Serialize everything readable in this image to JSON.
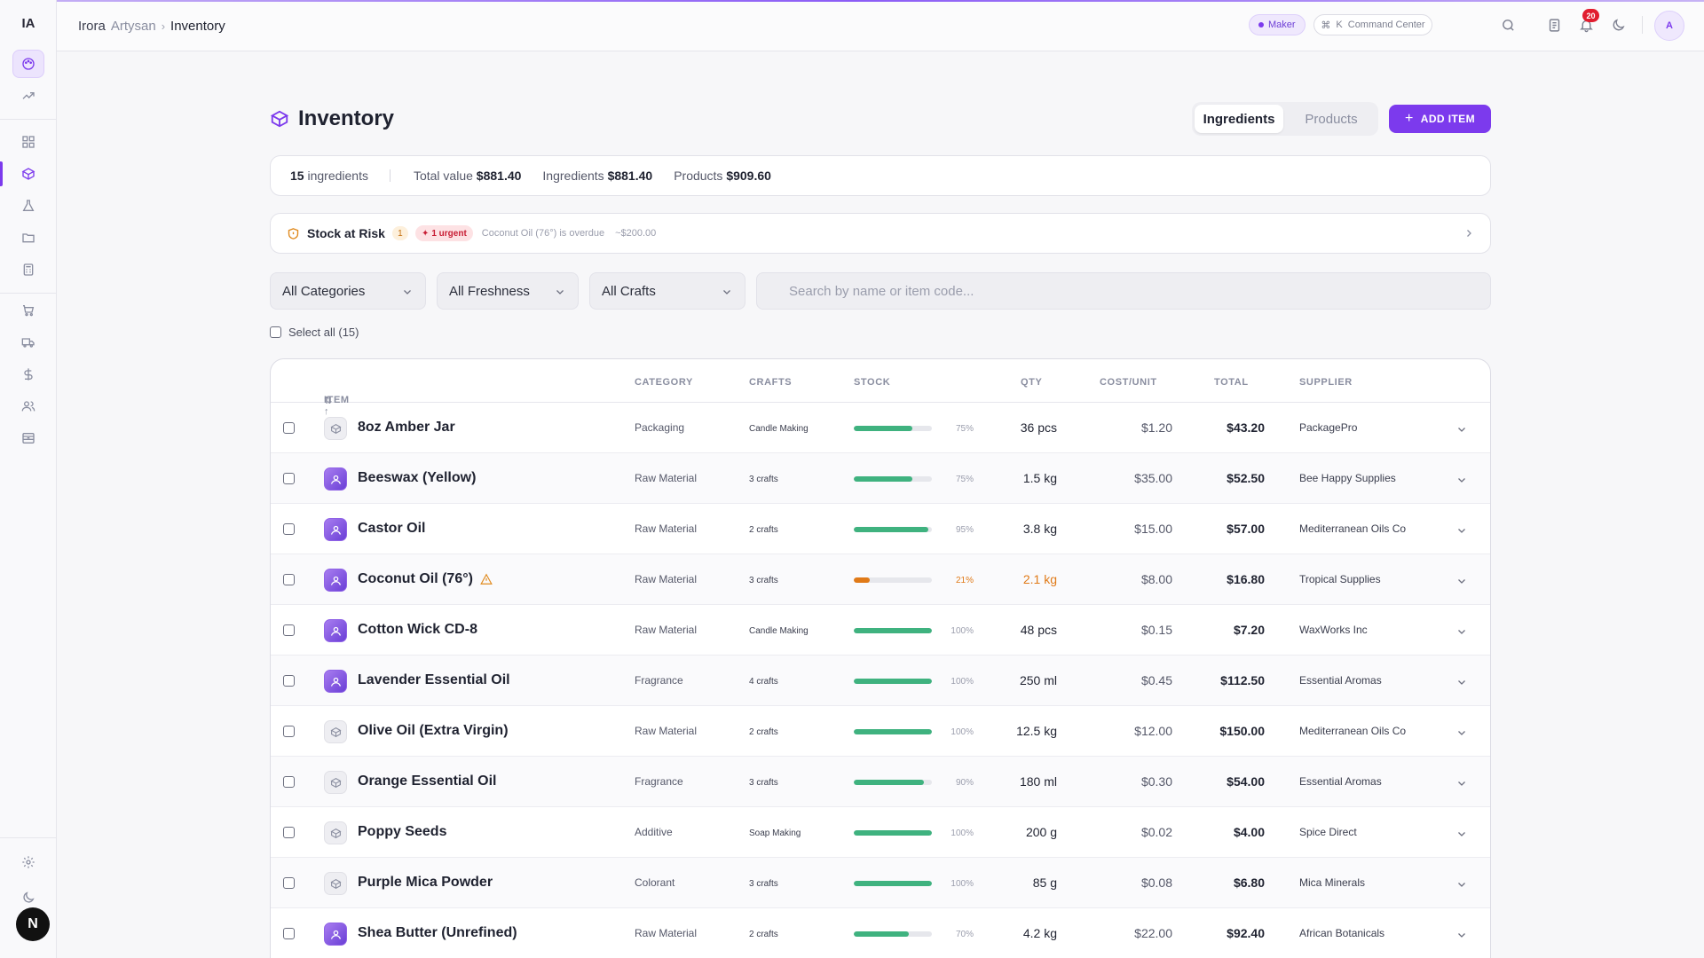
{
  "app": {
    "logo": "IA"
  },
  "header": {
    "breadcrumb": {
      "org": "Irora",
      "org_suffix": "Artysan",
      "current": "Inventory"
    },
    "mode_badge": "Maker",
    "command": {
      "key": "K",
      "label": "Command Center"
    },
    "notifications": "20",
    "avatar": "A"
  },
  "sidebar": {
    "bottom_avatar": "N"
  },
  "page": {
    "title": "Inventory",
    "tabs": [
      "Ingredients",
      "Products"
    ],
    "active_tab": "Ingredients",
    "add_label": "ADD ITEM"
  },
  "summary": {
    "count": "15",
    "count_label": "ingredients",
    "total_label": "Total value",
    "total_value": "$881.40",
    "ingredients_label": "Ingredients",
    "ingredients_value": "$881.40",
    "products_label": "Products",
    "products_value": "$909.60"
  },
  "risk": {
    "title": "Stock at Risk",
    "count": "1",
    "urgent": "1 urgent",
    "message": "Coconut Oil (76°) is overdue",
    "amount": "~$200.00"
  },
  "filters": {
    "category": "All Categories",
    "freshness": "All Freshness",
    "crafts": "All Crafts",
    "search_placeholder": "Search by name or item code..."
  },
  "select_all": "Select all (15)",
  "table": {
    "headers": {
      "item": "ITEM",
      "category": "CATEGORY",
      "crafts": "CRAFTS",
      "stock": "STOCK",
      "qty": "QTY",
      "cost": "COST/UNIT",
      "total": "TOTAL",
      "supplier": "SUPPLIER"
    },
    "rows": [
      {
        "name": "8oz Amber Jar",
        "category": "Packaging",
        "crafts": "Candle Making",
        "stock": 75,
        "stock_label": "75%",
        "qty": "36 pcs",
        "cost": "$1.20",
        "total": "$43.20",
        "supplier": "PackagePro",
        "icon": "box-icon",
        "low": false,
        "warning": false
      },
      {
        "name": "Beeswax (Yellow)",
        "category": "Raw Material",
        "crafts": "3 crafts",
        "stock": 75,
        "stock_label": "75%",
        "qty": "1.5 kg",
        "cost": "$35.00",
        "total": "$52.50",
        "supplier": "Bee Happy Supplies",
        "icon": "photo-icon",
        "low": false,
        "warning": false
      },
      {
        "name": "Castor Oil",
        "category": "Raw Material",
        "crafts": "2 crafts",
        "stock": 95,
        "stock_label": "95%",
        "qty": "3.8 kg",
        "cost": "$15.00",
        "total": "$57.00",
        "supplier": "Mediterranean Oils Co",
        "icon": "photo-icon",
        "low": false,
        "warning": false
      },
      {
        "name": "Coconut Oil (76°)",
        "category": "Raw Material",
        "crafts": "3 crafts",
        "stock": 21,
        "stock_label": "21%",
        "qty": "2.1 kg",
        "cost": "$8.00",
        "total": "$16.80",
        "supplier": "Tropical Supplies",
        "icon": "photo-icon",
        "low": true,
        "warning": true
      },
      {
        "name": "Cotton Wick CD-8",
        "category": "Raw Material",
        "crafts": "Candle Making",
        "stock": 100,
        "stock_label": "100%",
        "qty": "48 pcs",
        "cost": "$0.15",
        "total": "$7.20",
        "supplier": "WaxWorks Inc",
        "icon": "photo-icon",
        "low": false,
        "warning": false
      },
      {
        "name": "Lavender Essential Oil",
        "category": "Fragrance",
        "crafts": "4 crafts",
        "stock": 100,
        "stock_label": "100%",
        "qty": "250 ml",
        "cost": "$0.45",
        "total": "$112.50",
        "supplier": "Essential Aromas",
        "icon": "photo-icon",
        "low": false,
        "warning": false
      },
      {
        "name": "Olive Oil (Extra Virgin)",
        "category": "Raw Material",
        "crafts": "2 crafts",
        "stock": 100,
        "stock_label": "100%",
        "qty": "12.5 kg",
        "cost": "$12.00",
        "total": "$150.00",
        "supplier": "Mediterranean Oils Co",
        "icon": "box-icon",
        "low": false,
        "warning": false
      },
      {
        "name": "Orange Essential Oil",
        "category": "Fragrance",
        "crafts": "3 crafts",
        "stock": 90,
        "stock_label": "90%",
        "qty": "180 ml",
        "cost": "$0.30",
        "total": "$54.00",
        "supplier": "Essential Aromas",
        "icon": "box-icon",
        "low": false,
        "warning": false
      },
      {
        "name": "Poppy Seeds",
        "category": "Additive",
        "crafts": "Soap Making",
        "stock": 100,
        "stock_label": "100%",
        "qty": "200 g",
        "cost": "$0.02",
        "total": "$4.00",
        "supplier": "Spice Direct",
        "icon": "box-icon",
        "low": false,
        "warning": false
      },
      {
        "name": "Purple Mica Powder",
        "category": "Colorant",
        "crafts": "3 crafts",
        "stock": 100,
        "stock_label": "100%",
        "qty": "85 g",
        "cost": "$0.08",
        "total": "$6.80",
        "supplier": "Mica Minerals",
        "icon": "box-icon",
        "low": false,
        "warning": false
      },
      {
        "name": "Shea Butter (Unrefined)",
        "category": "Raw Material",
        "crafts": "2 crafts",
        "stock": 70,
        "stock_label": "70%",
        "qty": "4.2 kg",
        "cost": "$22.00",
        "total": "$92.40",
        "supplier": "African Botanicals",
        "icon": "photo-icon",
        "low": false,
        "warning": false
      }
    ]
  }
}
